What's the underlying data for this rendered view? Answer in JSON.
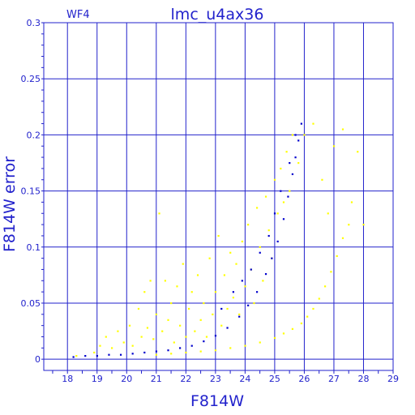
{
  "chart_data": {
    "type": "scatter",
    "title": "lmc_u4ax36",
    "subtitle": "WF4",
    "xlabel": "F814W",
    "ylabel": "F814W error",
    "xlim": [
      17.2,
      29
    ],
    "ylim": [
      -0.01,
      0.3
    ],
    "x_ticks": [
      18,
      19,
      20,
      21,
      22,
      23,
      24,
      25,
      26,
      27,
      28,
      29
    ],
    "y_ticks": [
      0,
      0.05,
      0.1,
      0.15,
      0.2,
      0.25,
      0.3
    ],
    "y_tick_labels": [
      "0",
      "0.05",
      "0.1",
      "0.15",
      "0.2",
      "0.25",
      "0.3"
    ],
    "grid": true,
    "series": [
      {
        "color": "#ffff00",
        "shape": "broad scatter",
        "points": [
          [
            18.3,
            0.003
          ],
          [
            18.9,
            0.006
          ],
          [
            19.1,
            0.012
          ],
          [
            19.3,
            0.02
          ],
          [
            19.5,
            0.01
          ],
          [
            19.7,
            0.025
          ],
          [
            19.9,
            0.015
          ],
          [
            20.1,
            0.03
          ],
          [
            20.2,
            0.012
          ],
          [
            20.4,
            0.045
          ],
          [
            20.5,
            0.02
          ],
          [
            20.6,
            0.06
          ],
          [
            20.7,
            0.028
          ],
          [
            20.8,
            0.07
          ],
          [
            20.9,
            0.018
          ],
          [
            21.0,
            0.04
          ],
          [
            21.1,
            0.13
          ],
          [
            21.2,
            0.025
          ],
          [
            21.3,
            0.07
          ],
          [
            21.4,
            0.035
          ],
          [
            21.5,
            0.05
          ],
          [
            21.6,
            0.015
          ],
          [
            21.7,
            0.065
          ],
          [
            21.8,
            0.03
          ],
          [
            21.9,
            0.085
          ],
          [
            22.0,
            0.02
          ],
          [
            22.1,
            0.045
          ],
          [
            22.2,
            0.06
          ],
          [
            22.3,
            0.025
          ],
          [
            22.4,
            0.075
          ],
          [
            22.5,
            0.035
          ],
          [
            22.6,
            0.05
          ],
          [
            22.7,
            0.02
          ],
          [
            22.8,
            0.09
          ],
          [
            22.9,
            0.04
          ],
          [
            23.0,
            0.06
          ],
          [
            23.1,
            0.11
          ],
          [
            23.2,
            0.03
          ],
          [
            23.3,
            0.075
          ],
          [
            23.4,
            0.045
          ],
          [
            23.5,
            0.095
          ],
          [
            23.6,
            0.055
          ],
          [
            23.7,
            0.085
          ],
          [
            23.8,
            0.04
          ],
          [
            23.9,
            0.105
          ],
          [
            24.0,
            0.065
          ],
          [
            24.1,
            0.12
          ],
          [
            24.2,
            0.08
          ],
          [
            24.3,
            0.05
          ],
          [
            24.4,
            0.135
          ],
          [
            24.5,
            0.1
          ],
          [
            24.6,
            0.07
          ],
          [
            24.7,
            0.145
          ],
          [
            24.8,
            0.115
          ],
          [
            24.9,
            0.09
          ],
          [
            25.0,
            0.16
          ],
          [
            25.1,
            0.13
          ],
          [
            25.2,
            0.17
          ],
          [
            25.3,
            0.14
          ],
          [
            25.4,
            0.185
          ],
          [
            25.5,
            0.15
          ],
          [
            25.6,
            0.2
          ],
          [
            25.8,
            0.175
          ],
          [
            26.0,
            0.2
          ],
          [
            26.3,
            0.21
          ],
          [
            26.6,
            0.16
          ],
          [
            26.8,
            0.13
          ],
          [
            27.0,
            0.19
          ],
          [
            27.3,
            0.205
          ],
          [
            27.6,
            0.14
          ],
          [
            27.8,
            0.185
          ],
          [
            28.0,
            0.12
          ],
          [
            21.0,
            0.004
          ],
          [
            21.5,
            0.005
          ],
          [
            22.0,
            0.006
          ],
          [
            22.5,
            0.007
          ],
          [
            23.0,
            0.008
          ],
          [
            23.5,
            0.01
          ],
          [
            24.0,
            0.012
          ],
          [
            24.5,
            0.015
          ],
          [
            25.0,
            0.019
          ],
          [
            25.3,
            0.023
          ],
          [
            25.6,
            0.027
          ],
          [
            25.9,
            0.032
          ],
          [
            26.1,
            0.038
          ],
          [
            26.3,
            0.045
          ],
          [
            26.5,
            0.054
          ],
          [
            26.7,
            0.065
          ],
          [
            26.9,
            0.078
          ],
          [
            27.1,
            0.092
          ],
          [
            27.3,
            0.108
          ],
          [
            27.5,
            0.12
          ]
        ]
      },
      {
        "color": "#0000cc",
        "shape": "tight curved sequence",
        "points": [
          [
            18.2,
            0.002
          ],
          [
            18.6,
            0.003
          ],
          [
            19.0,
            0.003
          ],
          [
            19.4,
            0.004
          ],
          [
            19.8,
            0.004
          ],
          [
            20.2,
            0.005
          ],
          [
            20.6,
            0.006
          ],
          [
            21.0,
            0.007
          ],
          [
            21.4,
            0.008
          ],
          [
            21.8,
            0.01
          ],
          [
            22.2,
            0.012
          ],
          [
            22.6,
            0.016
          ],
          [
            23.0,
            0.021
          ],
          [
            23.4,
            0.028
          ],
          [
            23.8,
            0.038
          ],
          [
            24.1,
            0.048
          ],
          [
            24.4,
            0.06
          ],
          [
            24.7,
            0.076
          ],
          [
            24.9,
            0.09
          ],
          [
            25.1,
            0.105
          ],
          [
            25.3,
            0.125
          ],
          [
            25.45,
            0.145
          ],
          [
            25.6,
            0.165
          ],
          [
            25.7,
            0.18
          ],
          [
            25.8,
            0.195
          ],
          [
            25.9,
            0.21
          ],
          [
            23.2,
            0.045
          ],
          [
            23.6,
            0.06
          ],
          [
            23.9,
            0.07
          ],
          [
            24.2,
            0.08
          ],
          [
            24.5,
            0.095
          ],
          [
            24.8,
            0.11
          ],
          [
            25.0,
            0.13
          ],
          [
            25.2,
            0.15
          ],
          [
            25.5,
            0.175
          ],
          [
            25.7,
            0.2
          ]
        ]
      }
    ]
  }
}
